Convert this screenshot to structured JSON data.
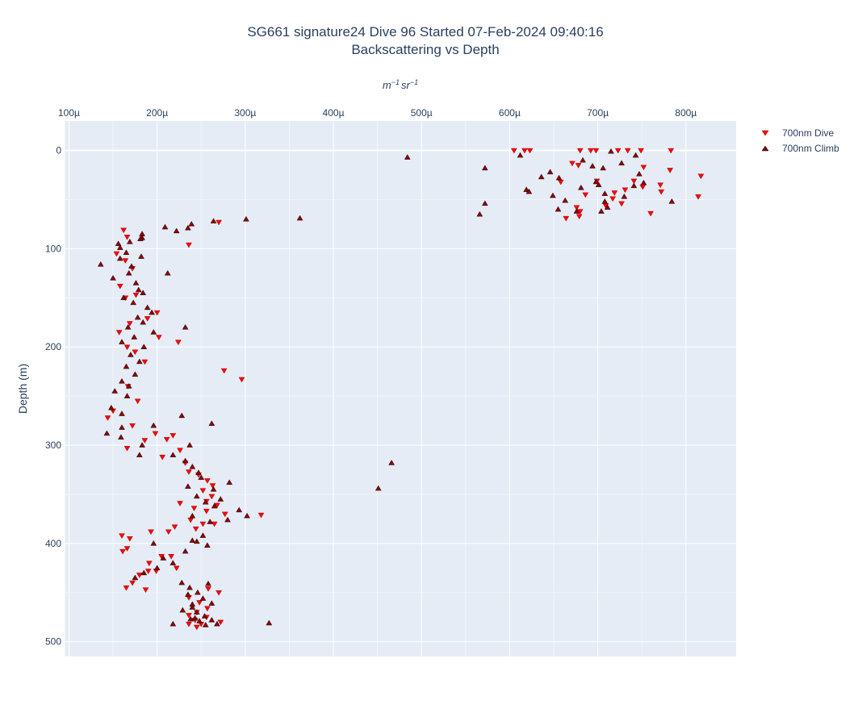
{
  "chart_data": {
    "type": "scatter",
    "title": "SG661 signature24 Dive 96 Started 07-Feb-2024 09:40:16",
    "subtitle": "Backscattering vs Depth",
    "xlabel": "m^{-1} sr^{-1}",
    "ylabel": "Depth (m)",
    "x_tick_labels": [
      "100µ",
      "200µ",
      "300µ",
      "400µ",
      "500µ",
      "600µ",
      "700µ",
      "800µ"
    ],
    "x_ticks": [
      0.0001,
      0.0002,
      0.0003,
      0.0004,
      0.0005,
      0.0006,
      0.0007,
      0.0008
    ],
    "y_tick_labels": [
      "0",
      "100",
      "200",
      "300",
      "400",
      "500"
    ],
    "y_ticks": [
      0,
      100,
      200,
      300,
      400,
      500
    ],
    "xlim": [
      9.5e-05,
      0.000857
    ],
    "ylim": [
      515,
      -30
    ],
    "y_reversed": true,
    "grid": true,
    "legend_position": "top-right",
    "colors": {
      "dive": "#ff0000",
      "climb": "#8b0000",
      "plot_bg": "#e5ecf6",
      "grid": "#ffffff",
      "text": "#2a3f5f"
    },
    "series": [
      {
        "name": "700nm Dive",
        "marker": "triangle-down",
        "color": "#ff0000",
        "points": [
          [
            0.000605,
            0
          ],
          [
            0.000617,
            0
          ],
          [
            0.000623,
            0
          ],
          [
            0.00068,
            0
          ],
          [
            0.000692,
            0
          ],
          [
            0.000698,
            0
          ],
          [
            0.000723,
            0
          ],
          [
            0.000734,
            0
          ],
          [
            0.000749,
            0
          ],
          [
            0.000783,
            0
          ],
          [
            0.000671,
            13
          ],
          [
            0.000678,
            15
          ],
          [
            0.000752,
            17
          ],
          [
            0.000782,
            20
          ],
          [
            0.000817,
            26
          ],
          [
            0.000699,
            31
          ],
          [
            0.000658,
            32
          ],
          [
            0.000741,
            31
          ],
          [
            0.000771,
            35
          ],
          [
            0.000751,
            37
          ],
          [
            0.000731,
            40
          ],
          [
            0.000719,
            43
          ],
          [
            0.000772,
            42
          ],
          [
            0.000686,
            45
          ],
          [
            0.000717,
            49
          ],
          [
            0.000814,
            47
          ],
          [
            0.000727,
            54
          ],
          [
            0.000709,
            56
          ],
          [
            0.000676,
            58
          ],
          [
            0.00068,
            62
          ],
          [
            0.00076,
            64
          ],
          [
            0.000664,
            69
          ],
          [
            0.000679,
            67
          ],
          [
            0.00027,
            73
          ],
          [
            0.000236,
            96
          ],
          [
            0.000162,
            81
          ],
          [
            0.000166,
            88
          ],
          [
            0.000154,
            105
          ],
          [
            0.000164,
            112
          ],
          [
            0.000172,
            120
          ],
          [
            0.000158,
            138
          ],
          [
            0.000176,
            147
          ],
          [
            0.000164,
            150
          ],
          [
            0.0002,
            165
          ],
          [
            0.000189,
            171
          ],
          [
            0.000169,
            176
          ],
          [
            0.000202,
            190
          ],
          [
            0.000224,
            195
          ],
          [
            0.000157,
            185
          ],
          [
            0.000166,
            200
          ],
          [
            0.000175,
            205
          ],
          [
            0.000186,
            215
          ],
          [
            0.000276,
            224
          ],
          [
            0.000296,
            233
          ],
          [
            0.000167,
            240
          ],
          [
            0.000178,
            255
          ],
          [
            0.00015,
            265
          ],
          [
            0.000144,
            272
          ],
          [
            0.000172,
            280
          ],
          [
            0.000198,
            288
          ],
          [
            0.000186,
            295
          ],
          [
            0.000211,
            294
          ],
          [
            0.000218,
            290
          ],
          [
            0.000166,
            303
          ],
          [
            0.000226,
            305
          ],
          [
            0.000206,
            312
          ],
          [
            0.000232,
            318
          ],
          [
            0.000236,
            327
          ],
          [
            0.000247,
            330
          ],
          [
            0.000257,
            336
          ],
          [
            0.000263,
            341
          ],
          [
            0.000252,
            346
          ],
          [
            0.000262,
            352
          ],
          [
            0.000256,
            357
          ],
          [
            0.000268,
            361
          ],
          [
            0.000242,
            364
          ],
          [
            0.000226,
            359
          ],
          [
            0.000256,
            367
          ],
          [
            0.000277,
            370
          ],
          [
            0.000318,
            371
          ],
          [
            0.000238,
            376
          ],
          [
            0.000252,
            380
          ],
          [
            0.00022,
            383
          ],
          [
            0.000244,
            385
          ],
          [
            0.000265,
            380
          ],
          [
            0.000213,
            388
          ],
          [
            0.00016,
            392
          ],
          [
            0.000169,
            395
          ],
          [
            0.000166,
            405
          ],
          [
            0.000161,
            408
          ],
          [
            0.000193,
            388
          ],
          [
            0.000205,
            413
          ],
          [
            0.000191,
            420
          ],
          [
            0.00019,
            428
          ],
          [
            0.000199,
            428
          ],
          [
            0.000216,
            413
          ],
          [
            0.000222,
            425
          ],
          [
            0.00018,
            432
          ],
          [
            0.000172,
            440
          ],
          [
            0.000165,
            445
          ],
          [
            0.000187,
            447
          ],
          [
            0.00027,
            450
          ],
          [
            0.000258,
            446
          ],
          [
            0.000236,
            455
          ],
          [
            0.000248,
            460
          ],
          [
            0.000257,
            466
          ],
          [
            0.000245,
            470
          ],
          [
            0.000236,
            473
          ],
          [
            0.000256,
            475
          ],
          [
            0.000243,
            478
          ],
          [
            0.00025,
            482
          ],
          [
            0.000245,
            485
          ],
          [
            0.000272,
            480
          ],
          [
            0.000236,
            482
          ]
        ]
      },
      {
        "name": "700nm Climb",
        "marker": "triangle-up",
        "color": "#8b0000",
        "points": [
          [
            0.000484,
            7
          ],
          [
            0.000572,
            18
          ],
          [
            0.000566,
            65
          ],
          [
            0.000572,
            54
          ],
          [
            0.000612,
            5
          ],
          [
            0.000646,
            22
          ],
          [
            0.000636,
            27
          ],
          [
            0.000656,
            28
          ],
          [
            0.000619,
            40
          ],
          [
            0.000622,
            42
          ],
          [
            0.000649,
            46
          ],
          [
            0.000663,
            51
          ],
          [
            0.000655,
            60
          ],
          [
            0.000676,
            62
          ],
          [
            0.000683,
            10
          ],
          [
            0.000706,
            18
          ],
          [
            0.000694,
            16
          ],
          [
            0.000715,
            1
          ],
          [
            0.000727,
            13
          ],
          [
            0.000743,
            5
          ],
          [
            0.000747,
            24
          ],
          [
            0.000741,
            36
          ],
          [
            0.00073,
            47
          ],
          [
            0.000708,
            44
          ],
          [
            0.000701,
            35
          ],
          [
            0.000698,
            32
          ],
          [
            0.000681,
            38
          ],
          [
            0.000708,
            52
          ],
          [
            0.000704,
            62
          ],
          [
            0.000711,
            58
          ],
          [
            0.000752,
            33
          ],
          [
            0.000784,
            52
          ],
          [
            0.000362,
            69
          ],
          [
            0.000301,
            70
          ],
          [
            0.000264,
            72
          ],
          [
            0.000239,
            75
          ],
          [
            0.000235,
            79
          ],
          [
            0.000209,
            78
          ],
          [
            0.000222,
            82
          ],
          [
            0.000183,
            85
          ],
          [
            0.000183,
            89
          ],
          [
            0.000181,
            90
          ],
          [
            0.000169,
            93
          ],
          [
            0.000156,
            95
          ],
          [
            0.000158,
            99
          ],
          [
            0.000136,
            116
          ],
          [
            0.000165,
            104
          ],
          [
            0.000158,
            110
          ],
          [
            0.000182,
            108
          ],
          [
            0.000171,
            118
          ],
          [
            0.000168,
            125
          ],
          [
            0.000212,
            125
          ],
          [
            0.00015,
            130
          ],
          [
            0.000176,
            135
          ],
          [
            0.000179,
            142
          ],
          [
            0.000184,
            145
          ],
          [
            0.000162,
            150
          ],
          [
            0.000173,
            155
          ],
          [
            0.000189,
            160
          ],
          [
            0.000194,
            165
          ],
          [
            0.000178,
            170
          ],
          [
            0.000184,
            175
          ],
          [
            0.000167,
            180
          ],
          [
            0.000232,
            180
          ],
          [
            0.000196,
            185
          ],
          [
            0.000174,
            190
          ],
          [
            0.00016,
            195
          ],
          [
            0.000185,
            200
          ],
          [
            0.00017,
            208
          ],
          [
            0.00018,
            215
          ],
          [
            0.000165,
            220
          ],
          [
            0.000175,
            228
          ],
          [
            0.00016,
            235
          ],
          [
            0.000168,
            240
          ],
          [
            0.000152,
            245
          ],
          [
            0.000166,
            250
          ],
          [
            0.000148,
            262
          ],
          [
            0.00016,
            268
          ],
          [
            0.000228,
            270
          ],
          [
            0.000262,
            278
          ],
          [
            0.000196,
            280
          ],
          [
            0.00016,
            282
          ],
          [
            0.000143,
            288
          ],
          [
            0.000159,
            292
          ],
          [
            0.000183,
            300
          ],
          [
            0.00018,
            310
          ],
          [
            0.000237,
            300
          ],
          [
            0.000218,
            310
          ],
          [
            0.000232,
            316
          ],
          [
            0.00024,
            322
          ],
          [
            0.000247,
            328
          ],
          [
            0.00025,
            333
          ],
          [
            0.000282,
            338
          ],
          [
            0.000264,
            345
          ],
          [
            0.000235,
            342
          ],
          [
            0.000245,
            352
          ],
          [
            0.000255,
            358
          ],
          [
            0.000265,
            362
          ],
          [
            0.000272,
            355
          ],
          [
            0.000293,
            366
          ],
          [
            0.000302,
            372
          ],
          [
            0.00028,
            376
          ],
          [
            0.00026,
            378
          ],
          [
            0.00024,
            372
          ],
          [
            0.000252,
            392
          ],
          [
            0.00024,
            397
          ],
          [
            0.000257,
            402
          ],
          [
            0.000245,
            398
          ],
          [
            0.000196,
            400
          ],
          [
            0.000466,
            318
          ],
          [
            0.000451,
            344
          ],
          [
            0.000327,
            481
          ],
          [
            0.000232,
            408
          ],
          [
            0.000207,
            415
          ],
          [
            0.000218,
            420
          ],
          [
            0.0002,
            425
          ],
          [
            0.000185,
            430
          ],
          [
            0.000175,
            435
          ],
          [
            0.000228,
            440
          ],
          [
            0.000237,
            445
          ],
          [
            0.000258,
            441
          ],
          [
            0.000246,
            450
          ],
          [
            0.000252,
            456
          ],
          [
            0.000262,
            461
          ],
          [
            0.00024,
            465
          ],
          [
            0.000245,
            470
          ],
          [
            0.000254,
            474
          ],
          [
            0.000262,
            478
          ],
          [
            0.000238,
            477
          ],
          [
            0.000218,
            482
          ],
          [
            0.000255,
            483
          ],
          [
            0.000268,
            482
          ],
          [
            0.000248,
            479
          ],
          [
            0.000243,
            476
          ],
          [
            0.000229,
            468
          ],
          [
            0.00024,
            462
          ],
          [
            0.000235,
            452
          ]
        ]
      }
    ]
  }
}
